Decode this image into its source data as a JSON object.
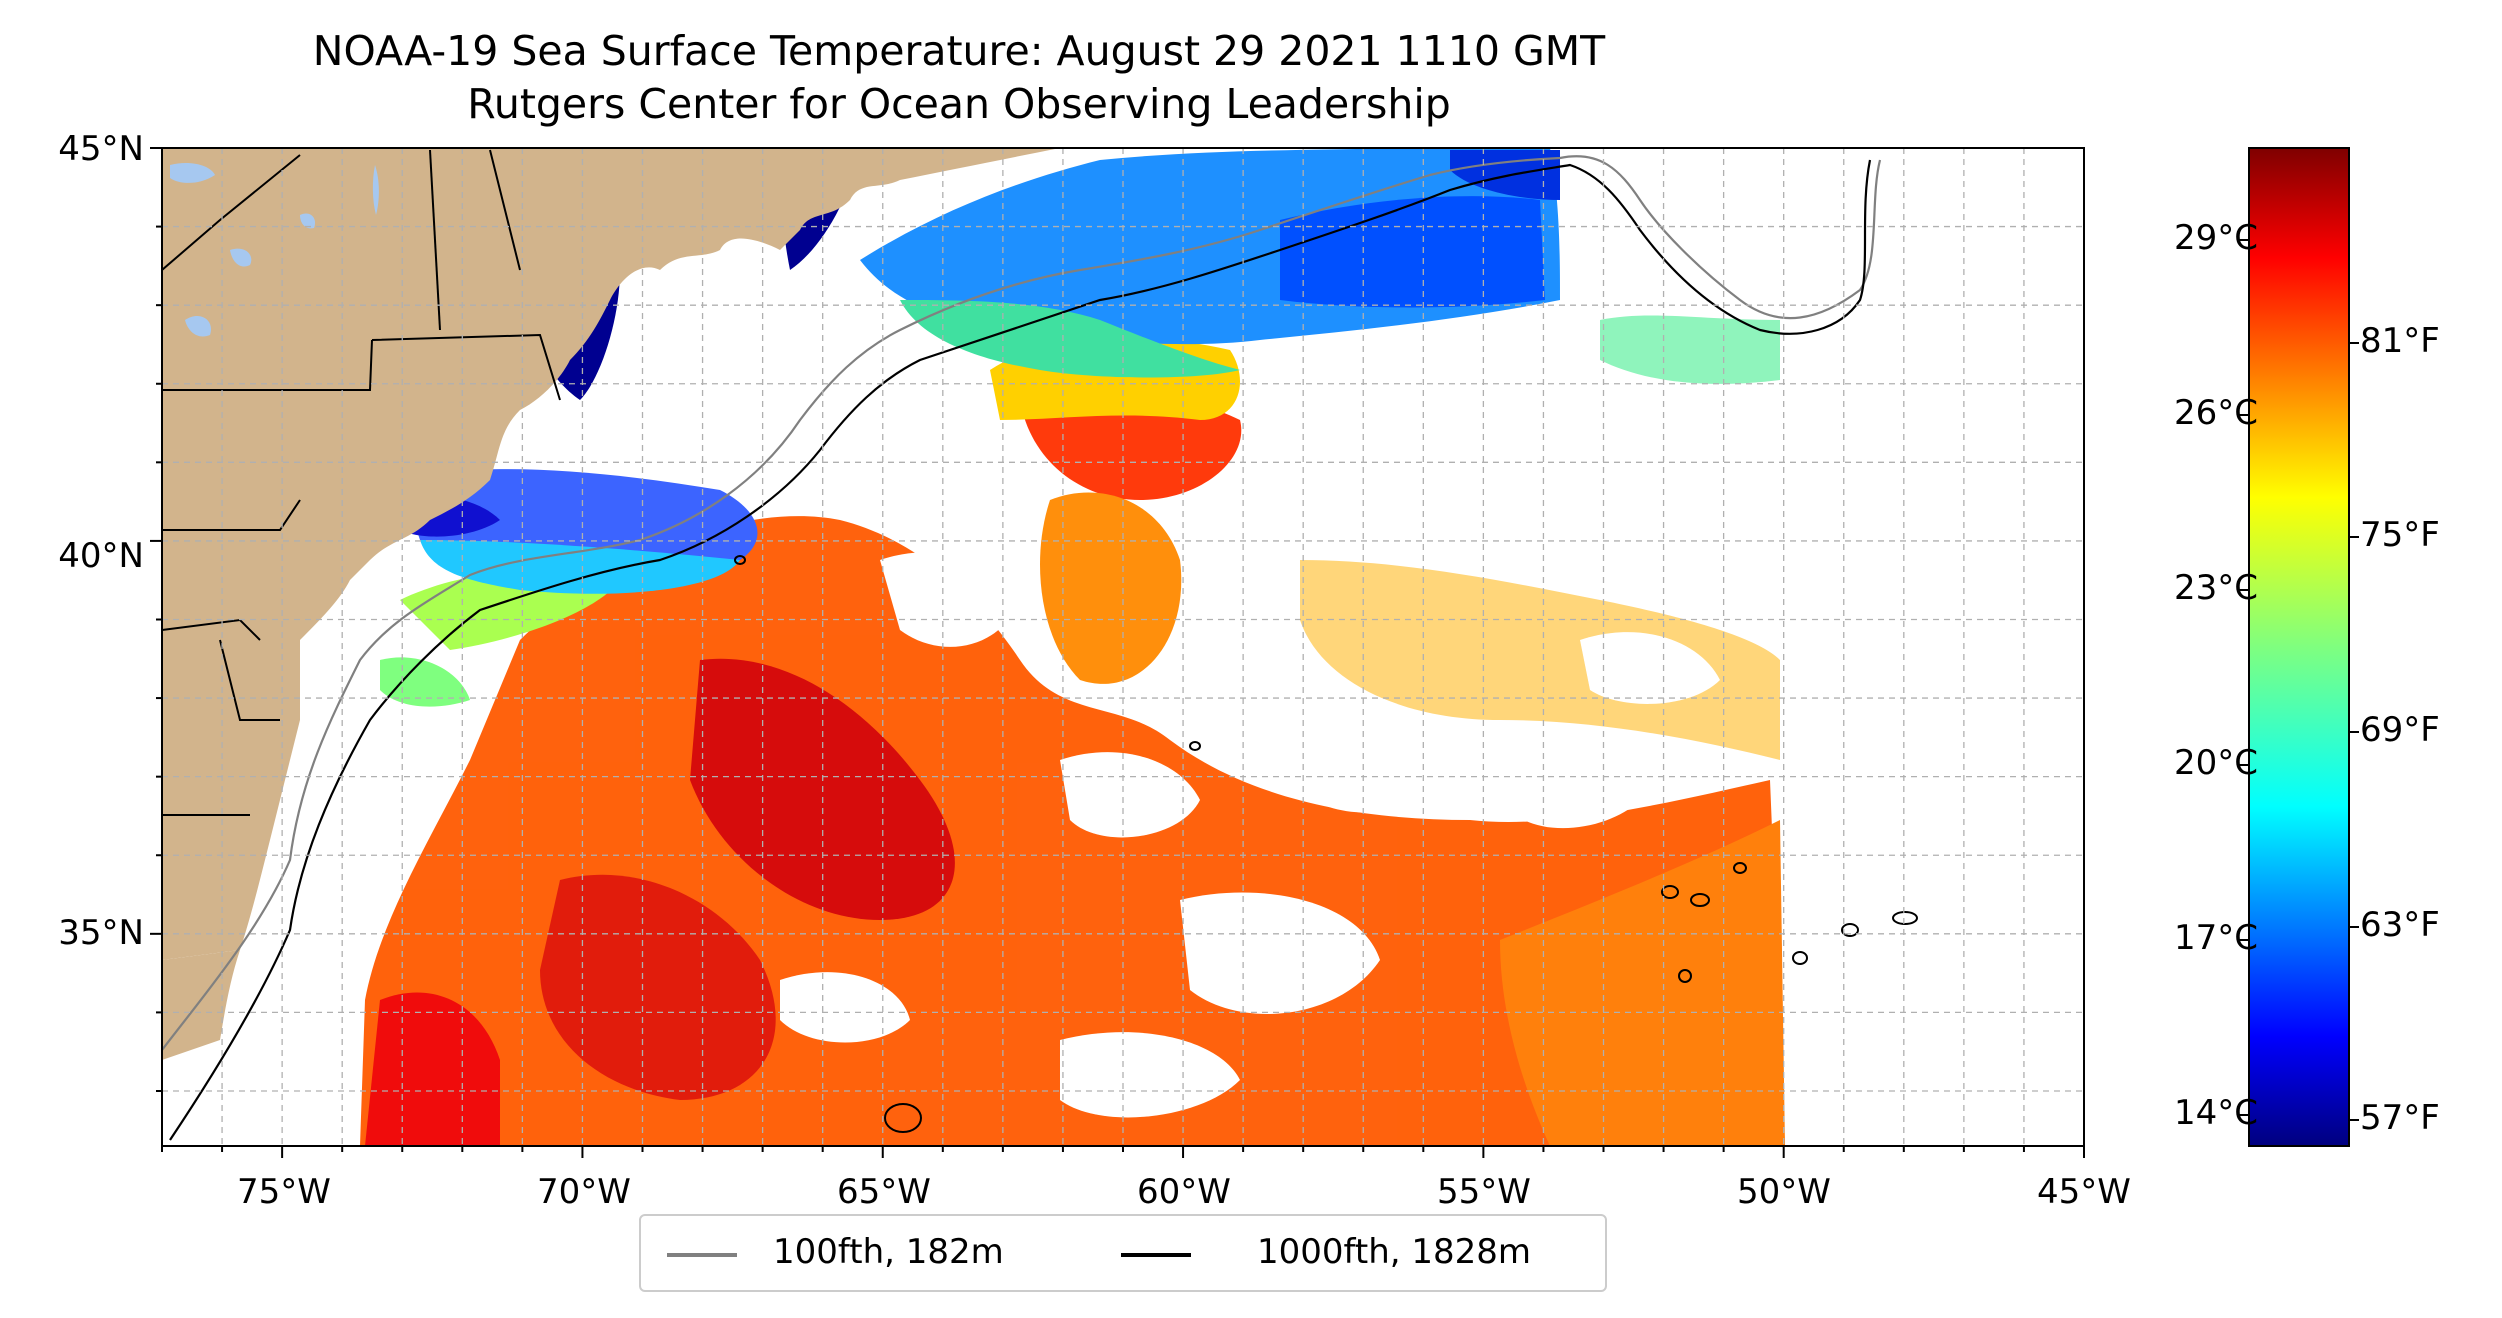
{
  "title": {
    "line1": "NOAA-19 Sea Surface Temperature: August 29 2021 1110 GMT",
    "line2": "Rutgers Center for Ocean Observing Leadership"
  },
  "map": {
    "lon_range": [
      -77,
      -45
    ],
    "lat_range": [
      32.3,
      45
    ],
    "lat_ticks": [
      {
        "value": 45,
        "label": "45°N"
      },
      {
        "value": 40,
        "label": "40°N"
      },
      {
        "value": 35,
        "label": "35°N"
      }
    ],
    "lon_ticks": [
      {
        "value": -75,
        "label": "75°W"
      },
      {
        "value": -70,
        "label": "70°W"
      },
      {
        "value": -65,
        "label": "65°W"
      },
      {
        "value": -60,
        "label": "60°W"
      },
      {
        "value": -55,
        "label": "55°W"
      },
      {
        "value": -50,
        "label": "50°W"
      },
      {
        "value": -45,
        "label": "45°W"
      }
    ],
    "gridlines": "dashed",
    "land_color": "#d2b48c",
    "lake_color": "#a6c8f0",
    "ocean_color": "#ffffff"
  },
  "colorbar": {
    "colormap": "jet",
    "celsius_ticks": [
      "29°C",
      "26°C",
      "23°C",
      "20°C",
      "17°C",
      "14°C"
    ],
    "fahrenheit_ticks": [
      "81°F",
      "75°F",
      "69°F",
      "63°F",
      "57°F"
    ],
    "colors": [
      "#00007f",
      "#0000ff",
      "#007fff",
      "#00ffff",
      "#7fff7f",
      "#ffff00",
      "#ff7f00",
      "#ff0000",
      "#7f0000"
    ]
  },
  "legend": {
    "items": [
      {
        "label": "100fth, 182m",
        "color": "#808080"
      },
      {
        "label": "1000fth, 1828m",
        "color": "#000000"
      }
    ]
  }
}
